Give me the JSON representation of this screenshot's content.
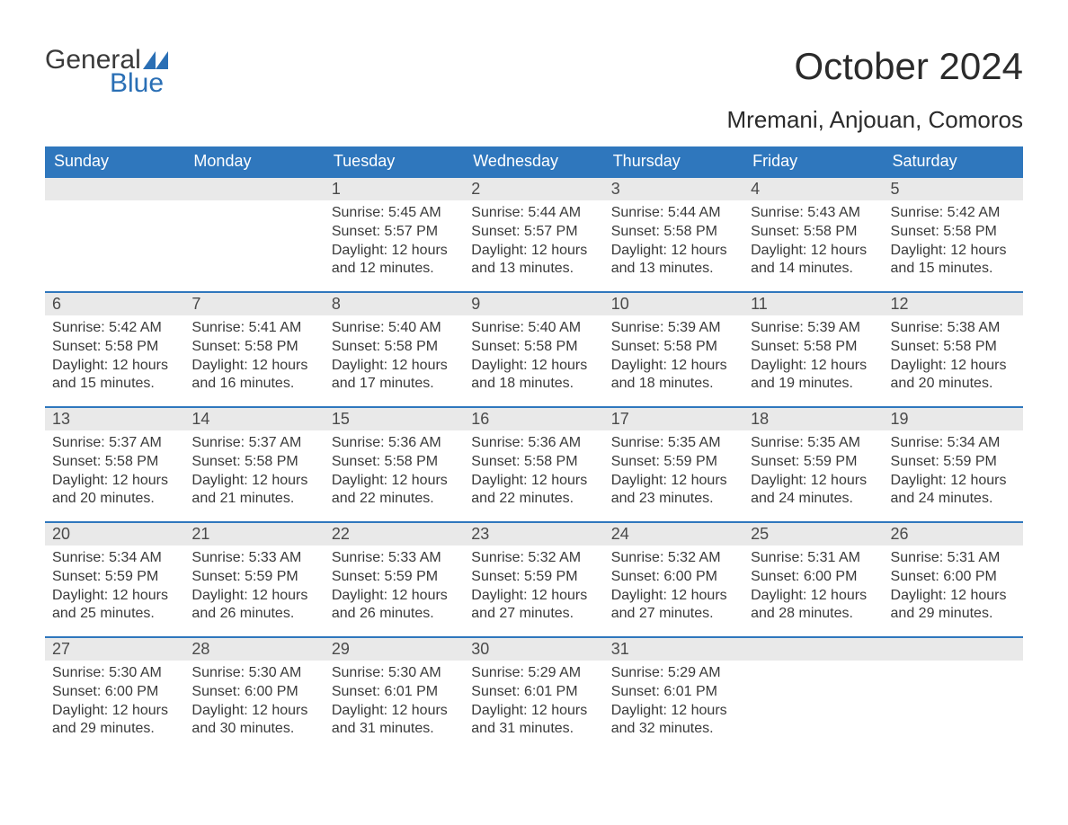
{
  "logo": {
    "word1": "General",
    "word2": "Blue",
    "flag_color": "#2a6fb5"
  },
  "title": "October 2024",
  "location": "Mremani, Anjouan, Comoros",
  "weekdays": [
    "Sunday",
    "Monday",
    "Tuesday",
    "Wednesday",
    "Thursday",
    "Friday",
    "Saturday"
  ],
  "colors": {
    "header_bg": "#2f77bd",
    "header_text": "#ffffff",
    "daynum_bg": "#e9e9e9",
    "border": "#2f77bd",
    "text": "#3a3a3a"
  },
  "weeks": [
    [
      null,
      null,
      {
        "n": "1",
        "sunrise": "Sunrise: 5:45 AM",
        "sunset": "Sunset: 5:57 PM",
        "d1": "Daylight: 12 hours",
        "d2": "and 12 minutes."
      },
      {
        "n": "2",
        "sunrise": "Sunrise: 5:44 AM",
        "sunset": "Sunset: 5:57 PM",
        "d1": "Daylight: 12 hours",
        "d2": "and 13 minutes."
      },
      {
        "n": "3",
        "sunrise": "Sunrise: 5:44 AM",
        "sunset": "Sunset: 5:58 PM",
        "d1": "Daylight: 12 hours",
        "d2": "and 13 minutes."
      },
      {
        "n": "4",
        "sunrise": "Sunrise: 5:43 AM",
        "sunset": "Sunset: 5:58 PM",
        "d1": "Daylight: 12 hours",
        "d2": "and 14 minutes."
      },
      {
        "n": "5",
        "sunrise": "Sunrise: 5:42 AM",
        "sunset": "Sunset: 5:58 PM",
        "d1": "Daylight: 12 hours",
        "d2": "and 15 minutes."
      }
    ],
    [
      {
        "n": "6",
        "sunrise": "Sunrise: 5:42 AM",
        "sunset": "Sunset: 5:58 PM",
        "d1": "Daylight: 12 hours",
        "d2": "and 15 minutes."
      },
      {
        "n": "7",
        "sunrise": "Sunrise: 5:41 AM",
        "sunset": "Sunset: 5:58 PM",
        "d1": "Daylight: 12 hours",
        "d2": "and 16 minutes."
      },
      {
        "n": "8",
        "sunrise": "Sunrise: 5:40 AM",
        "sunset": "Sunset: 5:58 PM",
        "d1": "Daylight: 12 hours",
        "d2": "and 17 minutes."
      },
      {
        "n": "9",
        "sunrise": "Sunrise: 5:40 AM",
        "sunset": "Sunset: 5:58 PM",
        "d1": "Daylight: 12 hours",
        "d2": "and 18 minutes."
      },
      {
        "n": "10",
        "sunrise": "Sunrise: 5:39 AM",
        "sunset": "Sunset: 5:58 PM",
        "d1": "Daylight: 12 hours",
        "d2": "and 18 minutes."
      },
      {
        "n": "11",
        "sunrise": "Sunrise: 5:39 AM",
        "sunset": "Sunset: 5:58 PM",
        "d1": "Daylight: 12 hours",
        "d2": "and 19 minutes."
      },
      {
        "n": "12",
        "sunrise": "Sunrise: 5:38 AM",
        "sunset": "Sunset: 5:58 PM",
        "d1": "Daylight: 12 hours",
        "d2": "and 20 minutes."
      }
    ],
    [
      {
        "n": "13",
        "sunrise": "Sunrise: 5:37 AM",
        "sunset": "Sunset: 5:58 PM",
        "d1": "Daylight: 12 hours",
        "d2": "and 20 minutes."
      },
      {
        "n": "14",
        "sunrise": "Sunrise: 5:37 AM",
        "sunset": "Sunset: 5:58 PM",
        "d1": "Daylight: 12 hours",
        "d2": "and 21 minutes."
      },
      {
        "n": "15",
        "sunrise": "Sunrise: 5:36 AM",
        "sunset": "Sunset: 5:58 PM",
        "d1": "Daylight: 12 hours",
        "d2": "and 22 minutes."
      },
      {
        "n": "16",
        "sunrise": "Sunrise: 5:36 AM",
        "sunset": "Sunset: 5:58 PM",
        "d1": "Daylight: 12 hours",
        "d2": "and 22 minutes."
      },
      {
        "n": "17",
        "sunrise": "Sunrise: 5:35 AM",
        "sunset": "Sunset: 5:59 PM",
        "d1": "Daylight: 12 hours",
        "d2": "and 23 minutes."
      },
      {
        "n": "18",
        "sunrise": "Sunrise: 5:35 AM",
        "sunset": "Sunset: 5:59 PM",
        "d1": "Daylight: 12 hours",
        "d2": "and 24 minutes."
      },
      {
        "n": "19",
        "sunrise": "Sunrise: 5:34 AM",
        "sunset": "Sunset: 5:59 PM",
        "d1": "Daylight: 12 hours",
        "d2": "and 24 minutes."
      }
    ],
    [
      {
        "n": "20",
        "sunrise": "Sunrise: 5:34 AM",
        "sunset": "Sunset: 5:59 PM",
        "d1": "Daylight: 12 hours",
        "d2": "and 25 minutes."
      },
      {
        "n": "21",
        "sunrise": "Sunrise: 5:33 AM",
        "sunset": "Sunset: 5:59 PM",
        "d1": "Daylight: 12 hours",
        "d2": "and 26 minutes."
      },
      {
        "n": "22",
        "sunrise": "Sunrise: 5:33 AM",
        "sunset": "Sunset: 5:59 PM",
        "d1": "Daylight: 12 hours",
        "d2": "and 26 minutes."
      },
      {
        "n": "23",
        "sunrise": "Sunrise: 5:32 AM",
        "sunset": "Sunset: 5:59 PM",
        "d1": "Daylight: 12 hours",
        "d2": "and 27 minutes."
      },
      {
        "n": "24",
        "sunrise": "Sunrise: 5:32 AM",
        "sunset": "Sunset: 6:00 PM",
        "d1": "Daylight: 12 hours",
        "d2": "and 27 minutes."
      },
      {
        "n": "25",
        "sunrise": "Sunrise: 5:31 AM",
        "sunset": "Sunset: 6:00 PM",
        "d1": "Daylight: 12 hours",
        "d2": "and 28 minutes."
      },
      {
        "n": "26",
        "sunrise": "Sunrise: 5:31 AM",
        "sunset": "Sunset: 6:00 PM",
        "d1": "Daylight: 12 hours",
        "d2": "and 29 minutes."
      }
    ],
    [
      {
        "n": "27",
        "sunrise": "Sunrise: 5:30 AM",
        "sunset": "Sunset: 6:00 PM",
        "d1": "Daylight: 12 hours",
        "d2": "and 29 minutes."
      },
      {
        "n": "28",
        "sunrise": "Sunrise: 5:30 AM",
        "sunset": "Sunset: 6:00 PM",
        "d1": "Daylight: 12 hours",
        "d2": "and 30 minutes."
      },
      {
        "n": "29",
        "sunrise": "Sunrise: 5:30 AM",
        "sunset": "Sunset: 6:01 PM",
        "d1": "Daylight: 12 hours",
        "d2": "and 31 minutes."
      },
      {
        "n": "30",
        "sunrise": "Sunrise: 5:29 AM",
        "sunset": "Sunset: 6:01 PM",
        "d1": "Daylight: 12 hours",
        "d2": "and 31 minutes."
      },
      {
        "n": "31",
        "sunrise": "Sunrise: 5:29 AM",
        "sunset": "Sunset: 6:01 PM",
        "d1": "Daylight: 12 hours",
        "d2": "and 32 minutes."
      },
      null,
      null
    ]
  ]
}
